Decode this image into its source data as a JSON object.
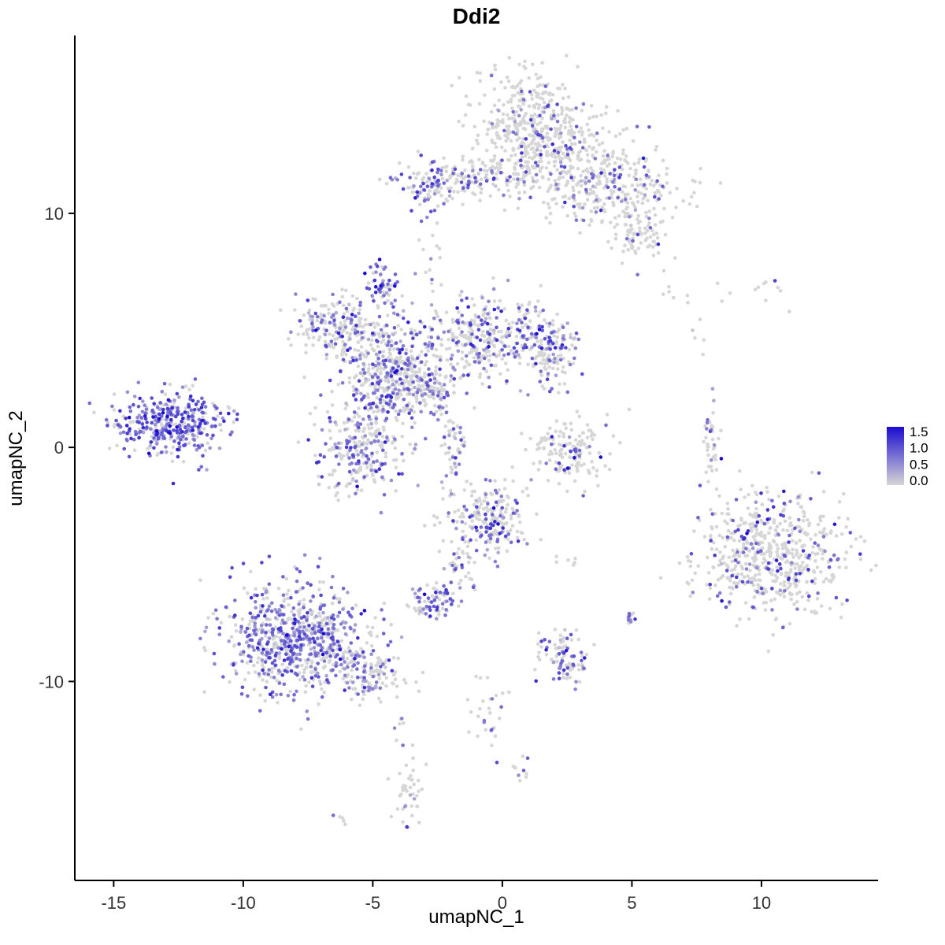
{
  "chart_data": {
    "type": "scatter",
    "title": "Ddi2",
    "xlabel": "umapNC_1",
    "ylabel": "umapNC_2",
    "xlim": [
      -16.5,
      14.5
    ],
    "ylim": [
      -18.5,
      17.6
    ],
    "x_tick_values": [
      -15,
      -10,
      -5,
      0,
      5,
      10
    ],
    "x_tick_labels": [
      "-15",
      "-10",
      "-5",
      "0",
      "5",
      "10"
    ],
    "y_tick_values": [
      -10,
      0,
      10
    ],
    "y_tick_labels": [
      "-10",
      "0",
      "10"
    ],
    "grid": false,
    "panel_background": "#ffffff",
    "point_radius_px": 2.3,
    "legend": {
      "position": "right",
      "tick_values": [
        1.5,
        1.0,
        0.5,
        0.0
      ],
      "tick_labels": [
        "1.5",
        "1.0",
        "0.5",
        "0.0"
      ],
      "min": 0.0,
      "max": 1.5,
      "low_color": "#d6d6d6",
      "high_color": "#1b0bd1"
    },
    "clusters": [
      {
        "name": "top-upper",
        "cx": 0.9,
        "cy": 14.2,
        "sx": 1.0,
        "sy": 1.1,
        "n": 260,
        "expr_frac": 0.12,
        "expr_mean": 0.8
      },
      {
        "name": "top-core",
        "cx": 2.0,
        "cy": 12.6,
        "sx": 1.3,
        "sy": 1.0,
        "n": 320,
        "expr_frac": 0.15,
        "expr_mean": 0.8
      },
      {
        "name": "top-right-arm",
        "cx": 4.3,
        "cy": 10.9,
        "sx": 1.4,
        "sy": 0.9,
        "n": 260,
        "expr_frac": 0.18,
        "expr_mean": 0.7
      },
      {
        "name": "top-right-tip",
        "cx": 5.3,
        "cy": 9.0,
        "sx": 0.6,
        "sy": 0.5,
        "n": 70,
        "expr_frac": 0.15,
        "expr_mean": 0.7
      },
      {
        "name": "top-left-arm",
        "cx": -1.3,
        "cy": 11.4,
        "sx": 1.4,
        "sy": 0.45,
        "n": 160,
        "expr_frac": 0.3,
        "expr_mean": 0.7
      },
      {
        "name": "top-left-knob",
        "cx": -2.9,
        "cy": 11.1,
        "sx": 0.4,
        "sy": 0.5,
        "n": 60,
        "expr_frac": 0.4,
        "expr_mean": 0.8
      },
      {
        "name": "stray-top-dots",
        "cx": -2.8,
        "cy": 8.4,
        "sx": 0.3,
        "sy": 0.9,
        "n": 14,
        "expr_frac": 0.2,
        "expr_mean": 0.6
      },
      {
        "name": "cross-left-lobe",
        "cx": -6.4,
        "cy": 5.2,
        "sx": 0.9,
        "sy": 0.75,
        "n": 210,
        "expr_frac": 0.3,
        "expr_mean": 0.7
      },
      {
        "name": "cross-purple-knob",
        "cx": -4.6,
        "cy": 6.9,
        "sx": 0.28,
        "sy": 0.5,
        "n": 55,
        "expr_frac": 0.75,
        "expr_mean": 0.9
      },
      {
        "name": "cross-center",
        "cx": -4.1,
        "cy": 2.9,
        "sx": 1.05,
        "sy": 1.0,
        "n": 480,
        "expr_frac": 0.45,
        "expr_mean": 0.75
      },
      {
        "name": "cross-right-lobe",
        "cx": -0.7,
        "cy": 4.6,
        "sx": 1.5,
        "sy": 0.85,
        "n": 380,
        "expr_frac": 0.35,
        "expr_mean": 0.75
      },
      {
        "name": "cross-right-tip",
        "cx": 1.8,
        "cy": 4.0,
        "sx": 0.55,
        "sy": 0.7,
        "n": 110,
        "expr_frac": 0.35,
        "expr_mean": 0.8
      },
      {
        "name": "cross-lower-lobe",
        "cx": -5.4,
        "cy": -0.1,
        "sx": 0.95,
        "sy": 0.95,
        "n": 260,
        "expr_frac": 0.4,
        "expr_mean": 0.7
      },
      {
        "name": "cross-streak-a",
        "cx": -2.6,
        "cy": 2.2,
        "sx": 0.3,
        "sy": 0.55,
        "n": 50,
        "expr_frac": 0.5,
        "expr_mean": 0.8
      },
      {
        "name": "cross-streak-b",
        "cx": -1.9,
        "cy": 0.6,
        "sx": 0.25,
        "sy": 0.8,
        "n": 45,
        "expr_frac": 0.5,
        "expr_mean": 0.8
      },
      {
        "name": "left-island",
        "cx": -12.9,
        "cy": 1.0,
        "sx": 1.05,
        "sy": 0.7,
        "n": 380,
        "expr_frac": 0.72,
        "expr_mean": 0.85
      },
      {
        "name": "left-island-outlier",
        "cx": -10.5,
        "cy": 1.6,
        "sx": 0.12,
        "sy": 0.1,
        "n": 2,
        "expr_frac": 0.5,
        "expr_mean": 0.7
      },
      {
        "name": "center-arc",
        "cx": 2.7,
        "cy": -0.2,
        "sx": 0.75,
        "sy": 0.65,
        "n": 160,
        "expr_frac": 0.13,
        "expr_mean": 0.9
      },
      {
        "name": "right-streak",
        "cx": 8.1,
        "cy": 0.3,
        "sx": 0.14,
        "sy": 0.85,
        "n": 40,
        "expr_frac": 0.3,
        "expr_mean": 0.8
      },
      {
        "name": "right-island",
        "cx": 10.4,
        "cy": -4.6,
        "sx": 1.5,
        "sy": 1.3,
        "n": 600,
        "expr_frac": 0.18,
        "expr_mean": 0.9
      },
      {
        "name": "center-lower",
        "cx": -0.6,
        "cy": -3.1,
        "sx": 0.75,
        "sy": 0.85,
        "n": 230,
        "expr_frac": 0.35,
        "expr_mean": 0.8
      },
      {
        "name": "center-lower-tail",
        "cx": -1.6,
        "cy": -5.2,
        "sx": 0.3,
        "sy": 0.5,
        "n": 30,
        "expr_frac": 0.3,
        "expr_mean": 0.7
      },
      {
        "name": "small-blob",
        "cx": -2.6,
        "cy": -6.6,
        "sx": 0.45,
        "sy": 0.4,
        "n": 80,
        "expr_frac": 0.5,
        "expr_mean": 0.8
      },
      {
        "name": "bottomleft-main",
        "cx": -7.9,
        "cy": -8.2,
        "sx": 1.35,
        "sy": 1.15,
        "n": 750,
        "expr_frac": 0.55,
        "expr_mean": 0.75
      },
      {
        "name": "bottomleft-tail",
        "cx": -5.2,
        "cy": -9.7,
        "sx": 0.8,
        "sy": 0.55,
        "n": 130,
        "expr_frac": 0.3,
        "expr_mean": 0.6
      },
      {
        "name": "bottom-mid-island",
        "cx": 2.4,
        "cy": -9.1,
        "sx": 0.5,
        "sy": 0.55,
        "n": 95,
        "expr_frac": 0.35,
        "expr_mean": 0.7
      },
      {
        "name": "tiny-purple-pair",
        "cx": 5.0,
        "cy": -7.2,
        "sx": 0.18,
        "sy": 0.22,
        "n": 12,
        "expr_frac": 0.7,
        "expr_mean": 0.8
      },
      {
        "name": "sparse-low-a",
        "cx": -0.5,
        "cy": -11.4,
        "sx": 0.35,
        "sy": 1.0,
        "n": 28,
        "expr_frac": 0.3,
        "expr_mean": 0.8
      },
      {
        "name": "sparse-low-b",
        "cx": -3.6,
        "cy": -14.6,
        "sx": 0.3,
        "sy": 0.8,
        "n": 40,
        "expr_frac": 0.3,
        "expr_mean": 0.7
      },
      {
        "name": "sparse-low-c",
        "cx": 0.7,
        "cy": -13.7,
        "sx": 0.25,
        "sy": 0.3,
        "n": 10,
        "expr_frac": 0.4,
        "expr_mean": 0.8
      },
      {
        "name": "sparse-low-d",
        "cx": -6.2,
        "cy": -15.9,
        "sx": 0.15,
        "sy": 0.15,
        "n": 5,
        "expr_frac": 0.4,
        "expr_mean": 0.6
      },
      {
        "name": "topright-sparse",
        "cx": 8.6,
        "cy": 6.6,
        "sx": 1.6,
        "sy": 0.35,
        "n": 18,
        "expr_frac": 0.05,
        "expr_mean": 0.5
      },
      {
        "name": "topright-dots",
        "cx": 7.8,
        "cy": 4.6,
        "sx": 0.3,
        "sy": 0.3,
        "n": 5,
        "expr_frac": 0.1,
        "expr_mean": 0.5
      },
      {
        "name": "stray-mid-dots",
        "cx": 2.5,
        "cy": -4.9,
        "sx": 0.25,
        "sy": 0.2,
        "n": 6,
        "expr_frac": 0.2,
        "expr_mean": 0.5
      },
      {
        "name": "stray-low-dots",
        "cx": -3.9,
        "cy": -12.0,
        "sx": 0.25,
        "sy": 0.5,
        "n": 8,
        "expr_frac": 0.3,
        "expr_mean": 0.6
      }
    ]
  }
}
